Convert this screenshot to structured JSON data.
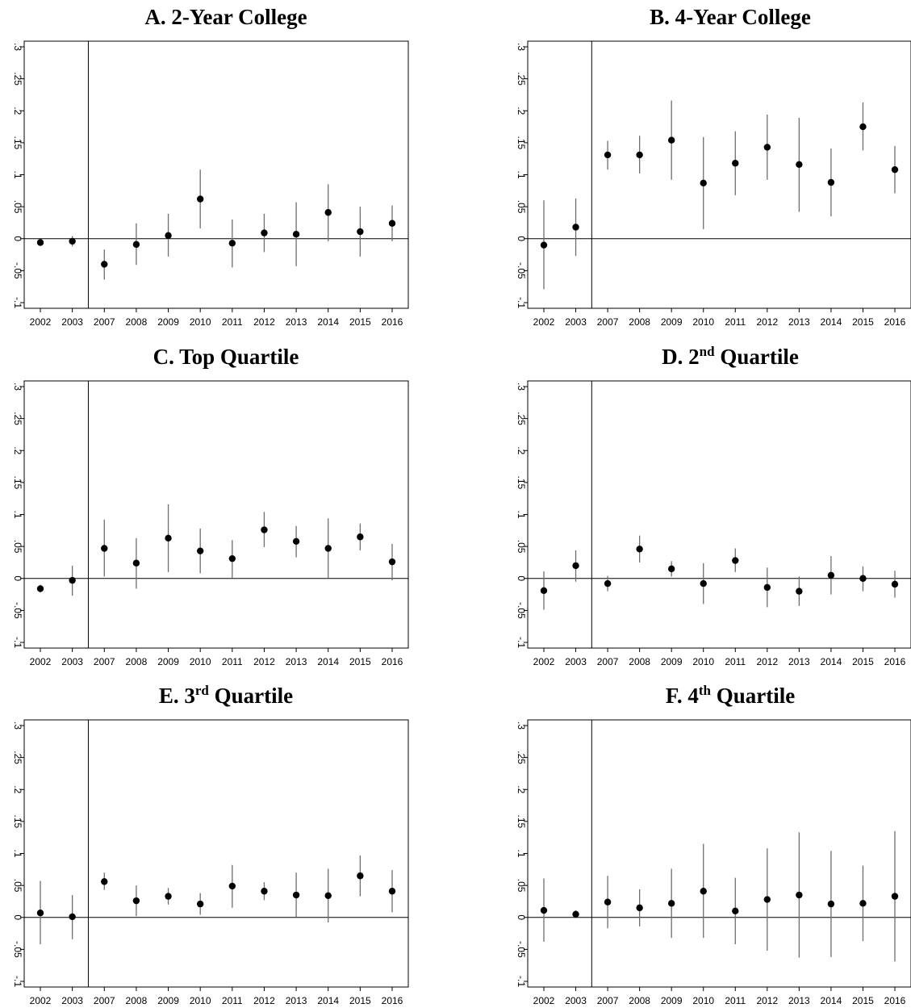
{
  "chart_data": [
    {
      "type": "scatter",
      "panel": "A",
      "title": {
        "prefix": "A.  ",
        "main": "2-Year College",
        "sup": ""
      },
      "x": [
        "2002",
        "2003",
        "2007",
        "2008",
        "2009",
        "2010",
        "2011",
        "2012",
        "2013",
        "2014",
        "2015",
        "2016"
      ],
      "series": [
        {
          "values": [
            -0.006,
            -0.004,
            -0.04,
            -0.009,
            0.005,
            0.062,
            -0.007,
            0.009,
            0.007,
            0.041,
            0.011,
            0.024
          ],
          "ci_low": [
            -0.01,
            -0.012,
            -0.064,
            -0.041,
            -0.028,
            0.016,
            -0.045,
            -0.021,
            -0.043,
            -0.004,
            -0.028,
            -0.004
          ],
          "ci_high": [
            -0.002,
            0.004,
            -0.017,
            0.024,
            0.039,
            0.108,
            0.03,
            0.039,
            0.057,
            0.085,
            0.05,
            0.052
          ]
        }
      ],
      "ylim": [
        -0.1,
        0.3
      ],
      "yticks": [
        -0.1,
        -0.05,
        0,
        0.05,
        0.1,
        0.15,
        0.2,
        0.25,
        0.3
      ],
      "ytick_labels": [
        "-.1",
        "-.05",
        "0",
        ".05",
        ".1",
        ".15",
        ".2",
        ".25",
        ".3"
      ],
      "reference_line": {
        "y": 0
      },
      "vertical_divider_after": "2003",
      "grid": false
    },
    {
      "type": "scatter",
      "panel": "B",
      "title": {
        "prefix": "B.  ",
        "main": "4-Year College",
        "sup": ""
      },
      "x": [
        "2002",
        "2003",
        "2007",
        "2008",
        "2009",
        "2010",
        "2011",
        "2012",
        "2013",
        "2014",
        "2015",
        "2016"
      ],
      "series": [
        {
          "values": [
            -0.01,
            0.018,
            0.131,
            0.131,
            0.154,
            0.087,
            0.118,
            0.143,
            0.116,
            0.088,
            0.175,
            0.108
          ],
          "ci_low": [
            -0.079,
            -0.027,
            0.108,
            0.102,
            0.092,
            0.015,
            0.068,
            0.092,
            0.042,
            0.035,
            0.138,
            0.071
          ],
          "ci_high": [
            0.06,
            0.063,
            0.153,
            0.161,
            0.216,
            0.159,
            0.168,
            0.194,
            0.189,
            0.141,
            0.213,
            0.145
          ]
        }
      ],
      "ylim": [
        -0.1,
        0.3
      ],
      "yticks": [
        -0.1,
        -0.05,
        0,
        0.05,
        0.1,
        0.15,
        0.2,
        0.25,
        0.3
      ],
      "ytick_labels": [
        "-.1",
        "-.05",
        "0",
        ".05",
        ".1",
        ".15",
        ".2",
        ".25",
        ".3"
      ],
      "reference_line": {
        "y": 0
      },
      "vertical_divider_after": "2003",
      "grid": false
    },
    {
      "type": "scatter",
      "panel": "C",
      "title": {
        "prefix": "C.  ",
        "main": "Top Quartile",
        "sup": ""
      },
      "x": [
        "2002",
        "2003",
        "2007",
        "2008",
        "2009",
        "2010",
        "2011",
        "2012",
        "2013",
        "2014",
        "2015",
        "2016"
      ],
      "series": [
        {
          "values": [
            -0.016,
            -0.003,
            0.047,
            0.024,
            0.063,
            0.043,
            0.031,
            0.076,
            0.058,
            0.047,
            0.065,
            0.026
          ],
          "ci_low": [
            -0.022,
            -0.027,
            0.003,
            -0.016,
            0.01,
            0.008,
            0.001,
            0.049,
            0.033,
            0.001,
            0.044,
            -0.003
          ],
          "ci_high": [
            -0.01,
            0.02,
            0.092,
            0.063,
            0.116,
            0.078,
            0.06,
            0.104,
            0.082,
            0.094,
            0.086,
            0.054
          ]
        }
      ],
      "ylim": [
        -0.1,
        0.3
      ],
      "yticks": [
        -0.1,
        -0.05,
        0,
        0.05,
        0.1,
        0.15,
        0.2,
        0.25,
        0.3
      ],
      "ytick_labels": [
        "-.1",
        "-.05",
        "0",
        ".05",
        ".1",
        ".15",
        ".2",
        ".25",
        ".3"
      ],
      "reference_line": {
        "y": 0
      },
      "vertical_divider_after": "2003",
      "grid": false
    },
    {
      "type": "scatter",
      "panel": "D",
      "title": {
        "prefix": "D.  ",
        "main": "Quartile",
        "sup": "nd",
        "sup_base": "2"
      },
      "x": [
        "2002",
        "2003",
        "2007",
        "2008",
        "2009",
        "2010",
        "2011",
        "2012",
        "2013",
        "2014",
        "2015",
        "2016"
      ],
      "series": [
        {
          "values": [
            -0.019,
            0.02,
            -0.008,
            0.046,
            0.015,
            -0.008,
            0.028,
            -0.014,
            -0.02,
            0.005,
            0.0,
            -0.009
          ],
          "ci_low": [
            -0.049,
            -0.005,
            -0.02,
            0.025,
            0.003,
            -0.04,
            0.01,
            -0.045,
            -0.043,
            -0.025,
            -0.02,
            -0.03
          ],
          "ci_high": [
            0.011,
            0.044,
            0.004,
            0.067,
            0.027,
            0.024,
            0.047,
            0.017,
            0.003,
            0.035,
            0.019,
            0.012
          ]
        }
      ],
      "ylim": [
        -0.1,
        0.3
      ],
      "yticks": [
        -0.1,
        -0.05,
        0,
        0.05,
        0.1,
        0.15,
        0.2,
        0.25,
        0.3
      ],
      "ytick_labels": [
        "-.1",
        "-.05",
        "0",
        ".05",
        ".1",
        ".15",
        ".2",
        ".25",
        ".3"
      ],
      "reference_line": {
        "y": 0
      },
      "vertical_divider_after": "2003",
      "grid": false
    },
    {
      "type": "scatter",
      "panel": "E",
      "title": {
        "prefix": "E.  ",
        "main": "Quartile",
        "sup": "rd",
        "sup_base": "3"
      },
      "x": [
        "2002",
        "2003",
        "2007",
        "2008",
        "2009",
        "2010",
        "2011",
        "2012",
        "2013",
        "2014",
        "2015",
        "2016"
      ],
      "series": [
        {
          "values": [
            0.007,
            0.001,
            0.056,
            0.026,
            0.033,
            0.021,
            0.049,
            0.041,
            0.035,
            0.034,
            0.065,
            0.041
          ],
          "ci_low": [
            -0.042,
            -0.034,
            0.043,
            0.002,
            0.02,
            0.004,
            0.015,
            0.027,
            0.001,
            -0.008,
            0.033,
            0.008
          ],
          "ci_high": [
            0.057,
            0.035,
            0.07,
            0.05,
            0.046,
            0.038,
            0.082,
            0.055,
            0.07,
            0.076,
            0.097,
            0.074
          ]
        }
      ],
      "ylim": [
        -0.1,
        0.3
      ],
      "yticks": [
        -0.1,
        -0.05,
        0,
        0.05,
        0.1,
        0.15,
        0.2,
        0.25,
        0.3
      ],
      "ytick_labels": [
        "-.1",
        "-.05",
        "0",
        ".05",
        ".1",
        ".15",
        ".2",
        ".25",
        ".3"
      ],
      "reference_line": {
        "y": 0
      },
      "vertical_divider_after": "2003",
      "grid": false
    },
    {
      "type": "scatter",
      "panel": "F",
      "title": {
        "prefix": "F.  ",
        "main": "Quartile",
        "sup": "th",
        "sup_base": "4"
      },
      "x": [
        "2002",
        "2003",
        "2007",
        "2008",
        "2009",
        "2010",
        "2011",
        "2012",
        "2013",
        "2014",
        "2015",
        "2016"
      ],
      "series": [
        {
          "values": [
            0.011,
            0.005,
            0.024,
            0.015,
            0.022,
            0.041,
            0.01,
            0.028,
            0.035,
            0.021,
            0.022,
            0.033
          ],
          "ci_low": [
            -0.038,
            -0.001,
            -0.017,
            -0.014,
            -0.032,
            -0.032,
            -0.042,
            -0.052,
            -0.063,
            -0.062,
            -0.037,
            -0.069
          ],
          "ci_high": [
            0.061,
            0.011,
            0.065,
            0.044,
            0.076,
            0.115,
            0.062,
            0.108,
            0.133,
            0.104,
            0.081,
            0.135
          ]
        }
      ],
      "ylim": [
        -0.1,
        0.3
      ],
      "yticks": [
        -0.1,
        -0.05,
        0,
        0.05,
        0.1,
        0.15,
        0.2,
        0.25,
        0.3
      ],
      "ytick_labels": [
        "-.1",
        "-.05",
        "0",
        ".05",
        ".1",
        ".15",
        ".2",
        ".25",
        ".3"
      ],
      "reference_line": {
        "y": 0
      },
      "vertical_divider_after": "2003",
      "grid": false
    }
  ]
}
